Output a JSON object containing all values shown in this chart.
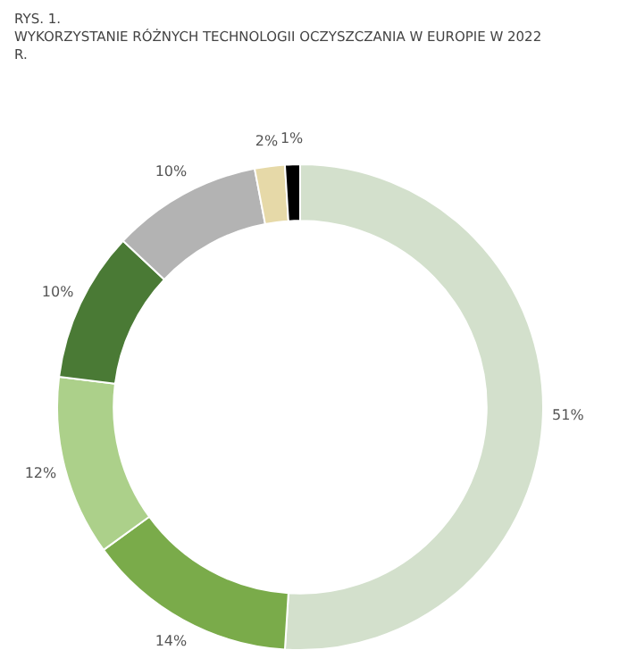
{
  "chart_data": {
    "type": "donut",
    "subtitle": "RYS. 1.",
    "title": "WYKORZYSTANIE RÓŻNYCH TECHNOLOGII OCZYSZCZANIA W EUROPIE W 2022 R.",
    "categories": [
      null,
      null,
      null,
      null,
      null,
      null,
      null
    ],
    "values": [
      51,
      14,
      12,
      10,
      10,
      2,
      1
    ],
    "value_labels": [
      "51%",
      "14%",
      "12%",
      "10%",
      "10%",
      "2%",
      "1%"
    ],
    "colors": [
      "#d3e0cc",
      "#7aab4a",
      "#acd08a",
      "#4a7a35",
      "#b3b3b3",
      "#e6d9a8",
      "#000000"
    ],
    "legend": false
  }
}
